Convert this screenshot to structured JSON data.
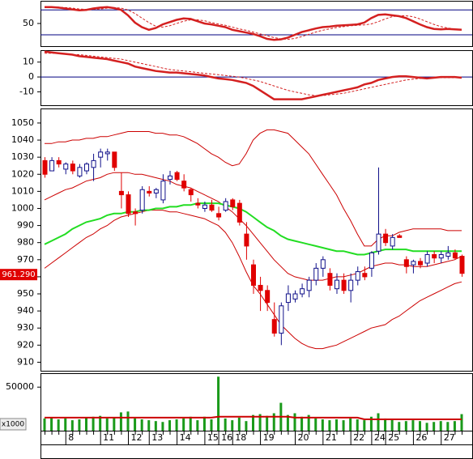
{
  "chart_data": [
    {
      "type": "line",
      "ylim": [
        0,
        100
      ],
      "yticks": [
        50
      ],
      "reference_lines": [
        80,
        25
      ],
      "reference_color": "#000080",
      "series": [
        {
          "color": "#d42020",
          "width": 2.5,
          "style": "solid",
          "values": [
            86,
            86,
            85,
            83,
            81,
            79,
            80,
            83,
            85,
            86,
            84,
            80,
            68,
            52,
            42,
            36,
            40,
            48,
            53,
            58,
            61,
            60,
            55,
            50,
            48,
            45,
            42,
            36,
            33,
            30,
            27,
            22,
            16,
            14,
            15,
            19,
            25,
            31,
            35,
            39,
            42,
            43,
            45,
            46,
            47,
            48,
            52,
            62,
            69,
            70,
            68,
            66,
            62,
            55,
            48,
            42,
            38,
            37,
            38,
            37,
            36
          ]
        },
        {
          "color": "#d42020",
          "width": 1,
          "style": "dashed",
          "values": [
            86,
            86,
            86,
            85,
            84,
            82,
            81,
            81,
            82,
            84,
            85,
            84,
            80,
            72,
            62,
            52,
            44,
            42,
            45,
            50,
            55,
            58,
            58,
            56,
            52,
            49,
            46,
            42,
            38,
            35,
            31,
            27,
            23,
            19,
            16,
            15,
            17,
            21,
            26,
            31,
            35,
            38,
            41,
            43,
            45,
            46,
            47,
            49,
            54,
            60,
            65,
            67,
            67,
            65,
            60,
            54,
            48,
            43,
            40,
            38,
            37
          ]
        }
      ]
    },
    {
      "type": "line",
      "ylim": [
        -19,
        18
      ],
      "yticks": [
        -10,
        0,
        10
      ],
      "reference_lines": [
        0
      ],
      "reference_color": "#000080",
      "series": [
        {
          "color": "#d42020",
          "width": 2.5,
          "style": "solid",
          "values": [
            17,
            16.5,
            16,
            15.5,
            15,
            14,
            13.5,
            13,
            12.5,
            12,
            11,
            10,
            9,
            7,
            6,
            5,
            4,
            3.5,
            3,
            3,
            2.5,
            2,
            1.5,
            1,
            0,
            -1,
            -1.5,
            -2,
            -3,
            -4,
            -6,
            -9,
            -12,
            -15,
            -15,
            -15,
            -15,
            -15,
            -14,
            -13,
            -12,
            -11,
            -10,
            -9,
            -8,
            -7,
            -5,
            -4,
            -2,
            -1,
            0,
            0.5,
            0.5,
            0,
            -0.5,
            -1,
            -0.5,
            0,
            0,
            0,
            -0.5
          ]
        },
        {
          "color": "#d42020",
          "width": 1,
          "style": "dashed",
          "values": [
            16,
            16,
            16,
            15.5,
            15,
            15,
            14.5,
            14,
            13.5,
            13,
            12.5,
            12,
            11,
            10,
            9,
            8,
            7,
            6,
            5,
            4.5,
            4,
            3.5,
            3,
            2.5,
            2,
            1.5,
            1,
            0.5,
            0,
            -1,
            -2,
            -3,
            -4.5,
            -6,
            -7.5,
            -9,
            -10,
            -11,
            -12,
            -12.5,
            -12.5,
            -12,
            -11.5,
            -11,
            -10,
            -9,
            -8,
            -7,
            -6,
            -5,
            -4,
            -3,
            -2,
            -1.5,
            -1,
            -1,
            -0.5,
            -0.5,
            -0.5,
            -0.5,
            -0.5
          ]
        }
      ]
    },
    {
      "type": "candlestick",
      "ylim": [
        905,
        1058.5
      ],
      "yticks": [
        910,
        920,
        930,
        940,
        950,
        960,
        970,
        980,
        990,
        1000,
        1010,
        1020,
        1030,
        1040,
        1050
      ],
      "up_color": "#10108a",
      "down_color": "#e00000",
      "last_price": {
        "value": 961.29,
        "label": "961.290"
      },
      "last_price_color": "#e00000",
      "candles": {
        "open": [
          1028,
          1022,
          1028,
          1023,
          1026,
          1019,
          1022,
          1024,
          1030,
          1032,
          1033,
          1010,
          1008,
          998,
          999,
          1010,
          1009,
          1005,
          1017,
          1021,
          1016,
          1011,
          1003,
          1000,
          1002,
          997,
          999,
          1005,
          1003,
          985,
          967,
          955,
          952,
          935,
          927,
          945,
          947,
          950,
          952,
          958,
          965,
          962,
          953,
          958,
          952,
          958,
          962,
          965,
          975,
          985,
          978,
          984,
          970,
          967,
          969,
          968,
          973,
          971,
          972,
          974,
          972
        ],
        "high": [
          1030,
          1030,
          1030,
          1027,
          1028,
          1026,
          1027,
          1032,
          1035,
          1035,
          1033,
          1021,
          1010,
          1000,
          1013,
          1013,
          1012,
          1020,
          1022,
          1022,
          1020,
          1012,
          1006,
          1004,
          1005,
          1001,
          1006,
          1006,
          1005,
          992,
          970,
          960,
          955,
          945,
          945,
          955,
          952,
          956,
          960,
          968,
          972,
          965,
          962,
          962,
          962,
          966,
          966,
          975,
          1024,
          988,
          985,
          985,
          972,
          970,
          971,
          975,
          975,
          975,
          978,
          976,
          973
        ],
        "low": [
          1018,
          1022,
          1024,
          1020,
          1020,
          1018,
          1020,
          1016,
          1024,
          1028,
          1022,
          1000,
          995,
          990,
          997,
          1007,
          1006,
          1003,
          1014,
          1016,
          1010,
          1004,
          1000,
          998,
          998,
          993,
          998,
          999,
          990,
          970,
          950,
          940,
          940,
          925,
          920,
          940,
          945,
          948,
          948,
          955,
          960,
          952,
          950,
          950,
          945,
          955,
          958,
          960,
          973,
          978,
          976,
          983,
          962,
          962,
          965,
          966,
          968,
          968,
          970,
          970,
          960
        ],
        "close": [
          1020,
          1028,
          1026,
          1026,
          1022,
          1024,
          1026,
          1028,
          1033,
          1033,
          1024,
          1008,
          997,
          997,
          1011,
          1009,
          1011,
          1016,
          1019,
          1017,
          1012,
          1008,
          1002,
          1002,
          999,
          995,
          1004,
          1001,
          992,
          978,
          955,
          952,
          945,
          927,
          943,
          950,
          950,
          953,
          958,
          965,
          970,
          955,
          958,
          952,
          958,
          963,
          960,
          974,
          985,
          980,
          983,
          983,
          966,
          969,
          967,
          973,
          971,
          973,
          974,
          971,
          962
        ]
      },
      "series": [
        {
          "color": "#cc0000",
          "width": 1,
          "style": "solid",
          "values": [
            1038,
            1038,
            1039,
            1039,
            1040,
            1040,
            1041,
            1041,
            1042,
            1042,
            1043,
            1044,
            1045,
            1045,
            1045,
            1045,
            1044,
            1044,
            1043,
            1043,
            1042,
            1040,
            1038,
            1035,
            1032,
            1030,
            1027,
            1025,
            1026,
            1032,
            1040,
            1044,
            1046,
            1046,
            1045,
            1044,
            1040,
            1036,
            1032,
            1026,
            1020,
            1014,
            1008,
            1000,
            993,
            985,
            978,
            978,
            982,
            984,
            984,
            986,
            987,
            988,
            988,
            988,
            988,
            988,
            987,
            987,
            987
          ]
        },
        {
          "color": "#cc0000",
          "width": 1,
          "style": "solid",
          "values": [
            1005,
            1007,
            1009,
            1011,
            1012,
            1014,
            1016,
            1017,
            1018,
            1020,
            1021,
            1021,
            1021,
            1020,
            1020,
            1019,
            1018,
            1017,
            1016,
            1014,
            1013,
            1012,
            1010,
            1008,
            1006,
            1004,
            1001,
            998,
            994,
            990,
            985,
            980,
            975,
            970,
            966,
            962,
            960,
            959,
            958,
            958,
            958,
            959,
            960,
            960,
            961,
            962,
            964,
            966,
            967,
            968,
            968,
            967,
            967,
            966,
            966,
            966,
            967,
            968,
            969,
            970,
            972
          ]
        },
        {
          "color": "#cc0000",
          "width": 1,
          "style": "solid",
          "values": [
            965,
            968,
            971,
            974,
            977,
            980,
            983,
            985,
            988,
            990,
            993,
            995,
            996,
            997,
            998,
            999,
            999,
            999,
            998,
            998,
            997,
            996,
            995,
            994,
            992,
            990,
            986,
            980,
            972,
            963,
            955,
            950,
            944,
            938,
            932,
            928,
            924,
            921,
            919,
            918,
            918,
            919,
            920,
            922,
            924,
            926,
            928,
            930,
            931,
            932,
            935,
            937,
            940,
            943,
            946,
            948,
            950,
            952,
            954,
            956,
            957
          ]
        },
        {
          "color": "#22dd22",
          "width": 2,
          "style": "solid",
          "values": [
            979,
            981,
            983,
            985,
            988,
            990,
            992,
            993,
            994,
            996,
            997,
            997,
            998,
            998,
            999,
            999,
            1000,
            1000,
            1001,
            1001,
            1002,
            1002,
            1003,
            1003,
            1003,
            1003,
            1002,
            1001,
            1000,
            998,
            995,
            992,
            989,
            987,
            984,
            982,
            981,
            980,
            979,
            978,
            977,
            976,
            975,
            975,
            974,
            973,
            973,
            974,
            975,
            976,
            976,
            976,
            976,
            975,
            975,
            975,
            975,
            975,
            975,
            975,
            975
          ]
        }
      ]
    },
    {
      "type": "bar",
      "ylim": [
        0,
        66000
      ],
      "yticks": [
        50000
      ],
      "unit_label": "x1000",
      "color": "#1a9a1a",
      "categories": [
        null,
        null,
        null,
        "8",
        null,
        null,
        null,
        null,
        "11",
        null,
        null,
        null,
        "12",
        null,
        null,
        "13",
        null,
        null,
        null,
        "14",
        null,
        null,
        null,
        "15",
        null,
        "16",
        null,
        "18",
        null,
        null,
        null,
        "19",
        null,
        null,
        null,
        null,
        "20",
        null,
        null,
        null,
        "21",
        null,
        null,
        null,
        "22",
        null,
        null,
        "24",
        null,
        "25",
        null,
        null,
        null,
        "26",
        null,
        null,
        null,
        "27",
        null,
        null,
        null
      ],
      "values": [
        14000,
        15000,
        13000,
        14000,
        12000,
        13000,
        15000,
        16000,
        17000,
        14000,
        15000,
        21000,
        22000,
        14000,
        13000,
        12000,
        11000,
        10000,
        12000,
        13000,
        14000,
        16000,
        12000,
        16000,
        13000,
        62000,
        14000,
        12000,
        15000,
        11000,
        18000,
        19000,
        17000,
        20000,
        32000,
        18000,
        20000,
        16000,
        18000,
        14000,
        13000,
        12000,
        13000,
        12000,
        14000,
        13000,
        12000,
        16000,
        20000,
        14000,
        13000,
        10000,
        11000,
        12000,
        11000,
        9000,
        10000,
        11000,
        10000,
        11000,
        19000
      ],
      "series": [
        {
          "color": "#cc0000",
          "width": 2,
          "style": "solid",
          "values": [
            15000,
            15000,
            15000,
            15000,
            15000,
            15000,
            15000,
            15000,
            15000,
            15000,
            15000,
            15000,
            15000,
            15000,
            15000,
            15000,
            15000,
            15000,
            15000,
            15000,
            15000,
            15000,
            15000,
            15000,
            15000,
            16000,
            16000,
            16000,
            16000,
            16000,
            16000,
            16000,
            16000,
            16000,
            16000,
            16000,
            15000,
            15000,
            15000,
            15000,
            15000,
            15000,
            15000,
            15000,
            15000,
            15000,
            13000,
            13000,
            13000,
            13000,
            13000,
            13000,
            13000,
            13000,
            13000,
            13000,
            13000,
            13000,
            13000,
            13000,
            13000
          ]
        }
      ]
    }
  ]
}
